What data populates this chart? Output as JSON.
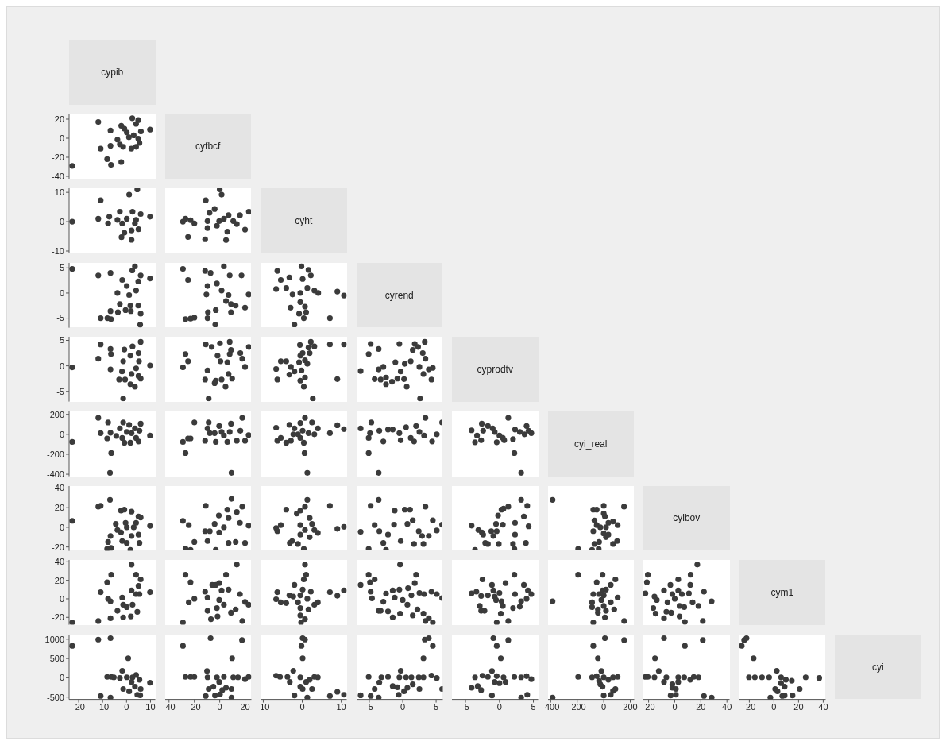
{
  "chart_data": [
    {
      "type": "other",
      "annotations": [
        "cypib",
        "cyfbcf",
        "cyht",
        "cyrend",
        "cyprodtv",
        "cyi_real",
        "cyibov",
        "cym1",
        "cyi"
      ]
    },
    {
      "type": "scatter",
      "color": "#3b3b3b",
      "marker": "circle",
      "tick_labels": "y",
      "xlim": [
        -24,
        12
      ],
      "xticks": [
        -20,
        -10,
        0,
        10
      ],
      "ylim": [
        -43,
        25
      ],
      "yticks": [
        -40,
        -20,
        0,
        20
      ],
      "x": [
        -22.7,
        -11.8,
        -10.8,
        -6.7,
        -6.7,
        -8.1,
        -6.5,
        -2.2,
        -2.2,
        0.1,
        2.4,
        4.9,
        9.8,
        -1.4,
        2,
        4,
        5.4,
        6,
        4,
        1,
        -3.8,
        -0.9,
        3,
        4.9,
        -2.8
      ],
      "values": [
        -29,
        17,
        -11,
        8,
        -8,
        -22,
        -28,
        -25,
        13,
        6,
        21,
        19,
        9,
        -9,
        -11,
        -9,
        -5,
        7,
        15,
        1,
        -1.5,
        10,
        3,
        -0.5,
        -6.5
      ]
    },
    {
      "type": "scatter",
      "color": "#3b3b3b",
      "marker": "circle",
      "tick_labels": "y",
      "xlim": [
        -24,
        12
      ],
      "xticks": [
        -20,
        -10,
        0,
        10
      ],
      "ylim": [
        -10.7,
        11.4
      ],
      "yticks": [
        -10,
        0,
        10
      ],
      "x": [
        -22.7,
        -10.8,
        -11.8,
        -7.2,
        -7.7,
        -2.8,
        -2.1,
        -0.9,
        1.1,
        4.5,
        2.1,
        2.1,
        5,
        9.8,
        0.1,
        -1.8,
        2.5,
        5.9,
        4,
        -3.8,
        3.5
      ],
      "values": [
        0,
        7.3,
        1,
        1.7,
        -0.6,
        3.4,
        -5.3,
        -3.8,
        9.2,
        11,
        -6.2,
        -3,
        -2.6,
        1.7,
        1,
        -0.6,
        3.4,
        2.6,
        0.6,
        0.6,
        -0.6
      ]
    },
    {
      "type": "scatter",
      "color": "#3b3b3b",
      "marker": "circle",
      "tick_labels": false,
      "xlim": [
        -43,
        25
      ],
      "xticks": [
        -40,
        -20,
        0,
        20
      ],
      "ylim": [
        -10.7,
        11.4
      ],
      "yticks": [
        -10,
        0,
        10
      ],
      "x": [
        -29,
        -27,
        -23,
        -20,
        -25,
        -11.5,
        -11,
        0,
        1.5,
        5,
        6,
        -8,
        -4,
        -9.6,
        -9.6,
        -0.4,
        3.3,
        10.7,
        16,
        23,
        20,
        13.5,
        -2.2,
        7
      ],
      "values": [
        0,
        1,
        0.5,
        -0.6,
        -5.2,
        -6,
        7.3,
        11,
        9.2,
        -6.3,
        -3.4,
        3,
        4.3,
        0.2,
        -2.2,
        0.2,
        1,
        0.2,
        2.2,
        3.4,
        -2.7,
        -0.8,
        -1.4,
        2.2
      ]
    },
    {
      "type": "scatter",
      "color": "#3b3b3b",
      "marker": "circle",
      "tick_labels": "y",
      "xlim": [
        -24,
        12
      ],
      "xticks": [
        -20,
        -10,
        0,
        10
      ],
      "ylim": [
        -6.9,
        6
      ],
      "yticks": [
        -5,
        0,
        5
      ],
      "x": [
        -22.7,
        -11.8,
        -10.8,
        -6.7,
        -8,
        -6.5,
        -6.7,
        -3.6,
        -1.8,
        3.5,
        2.4,
        -3.8,
        -2.8,
        -0.4,
        1.6,
        1.8,
        0.1,
        4,
        4.9,
        5.9,
        5.9,
        5.7,
        4.9,
        9.8,
        1.1
      ],
      "values": [
        4.8,
        3.5,
        -5,
        4,
        -5,
        -5.2,
        -3.6,
        -3.8,
        2.6,
        5.3,
        4.5,
        0,
        -2.2,
        -3.4,
        -2.5,
        -3.6,
        1.4,
        0.5,
        2.3,
        3.5,
        -4.1,
        -6.3,
        -2.5,
        2.9,
        -0.4
      ]
    },
    {
      "type": "scatter",
      "color": "#3b3b3b",
      "marker": "circle",
      "tick_labels": false,
      "xlim": [
        -43,
        25
      ],
      "xticks": [
        -40,
        -20,
        0,
        20
      ],
      "ylim": [
        -6.9,
        6
      ],
      "yticks": [
        -5,
        0,
        5
      ],
      "x": [
        -29,
        -25,
        -27,
        -23,
        -20,
        -11.5,
        -7.2,
        3.3,
        -3.5,
        -9.6,
        -9.3,
        -3.1,
        -9.6,
        -2.2,
        1.5,
        -10.5,
        5,
        7.9,
        8.9,
        8.9,
        12.6,
        17.2,
        20,
        22.8,
        7
      ],
      "values": [
        4.8,
        2.6,
        -5.2,
        -5.1,
        -4.9,
        4.4,
        4,
        5.3,
        -6.3,
        -5,
        -3.8,
        -3.4,
        1.4,
        1.9,
        0.5,
        -0.3,
        -1.6,
        3.5,
        -2.2,
        -3.8,
        -2.5,
        3.5,
        -2.9,
        -0.3,
        -0.4
      ]
    },
    {
      "type": "scatter",
      "color": "#3b3b3b",
      "marker": "circle",
      "tick_labels": false,
      "xlim": [
        -10.7,
        11.4
      ],
      "xticks": [
        -10,
        0,
        10
      ],
      "ylim": [
        -6.9,
        6
      ],
      "yticks": [
        -5,
        0,
        5
      ],
      "x": [
        -6.7,
        -6.4,
        -5.5,
        -4.1,
        -3.3,
        -2.5,
        -3,
        -2,
        -0.2,
        0.1,
        -0.5,
        -0.5,
        -0.8,
        0.4,
        0.7,
        1.3,
        2.2,
        1.6,
        3.1,
        4.1,
        1,
        9,
        10.7,
        7.1
      ],
      "values": [
        0.8,
        4.4,
        2.6,
        1,
        3.1,
        -0.3,
        -2.9,
        -6.3,
        5.3,
        2.8,
        0,
        -1.8,
        -4.1,
        -5,
        -2.7,
        1,
        3.5,
        4.6,
        0.5,
        0,
        -3.8,
        0.3,
        -0.5,
        -5
      ]
    },
    {
      "type": "scatter",
      "color": "#3b3b3b",
      "marker": "circle",
      "tick_labels": "y",
      "xlim": [
        -24,
        12
      ],
      "xticks": [
        -20,
        -10,
        0,
        10
      ],
      "ylim": [
        -7,
        5.7
      ],
      "yticks": [
        -5,
        0,
        5
      ],
      "x": [
        -22.7,
        -11.8,
        -10.8,
        -6.7,
        -6.5,
        -6.7,
        -3.1,
        -0.9,
        -1.4,
        -1.9,
        -0.6,
        1.6,
        3.5,
        2.5,
        1.6,
        2.1,
        5,
        5.9,
        5.9,
        5,
        5.2,
        4,
        9.8,
        -1.4
      ],
      "values": [
        -0.3,
        1.4,
        4.2,
        3.3,
        2.3,
        -0.7,
        -2.7,
        3.2,
        0.9,
        -1.1,
        -2.7,
        -3.6,
        -4.1,
        3.8,
        2,
        -1.6,
        -2,
        -2.5,
        4.7,
        2.5,
        0.9,
        -0.5,
        0.1,
        -6.4
      ]
    },
    {
      "type": "scatter",
      "color": "#3b3b3b",
      "marker": "circle",
      "tick_labels": false,
      "xlim": [
        -43,
        25
      ],
      "xticks": [
        -40,
        -20,
        0,
        20
      ],
      "ylim": [
        -7,
        5.7
      ],
      "yticks": [
        -5,
        0,
        5
      ],
      "x": [
        -29,
        -27,
        -25,
        -11,
        -6.3,
        0.2,
        7.9,
        23,
        -11.5,
        -9.6,
        -3.1,
        -4,
        1.5,
        4.6,
        -1.7,
        0.6,
        6,
        8.9,
        7.9,
        7,
        9.8,
        16.3,
        17.8,
        20,
        -8.7
      ],
      "values": [
        -0.3,
        2.3,
        0.9,
        4.2,
        3.7,
        4.4,
        4.7,
        3.7,
        -2.7,
        -0.9,
        -2.9,
        -3.4,
        -2.7,
        -4.1,
        2,
        0.9,
        0.7,
        3.1,
        2.3,
        -1.6,
        -2.5,
        2.5,
        1.4,
        -0.2,
        -6.4
      ]
    },
    {
      "type": "scatter",
      "color": "#3b3b3b",
      "marker": "circle",
      "tick_labels": false,
      "xlim": [
        -10.7,
        11.4
      ],
      "xticks": [
        -10,
        0,
        10
      ],
      "ylim": [
        -7,
        5.7
      ],
      "yticks": [
        -5,
        0,
        5
      ],
      "x": [
        -6.7,
        -6.4,
        -5.5,
        -4.1,
        -2.9,
        -3.3,
        -2,
        -0.8,
        -0.6,
        -0.5,
        0.1,
        0.7,
        1.6,
        2.2,
        3.1,
        1.9,
        1.3,
        0.7,
        -0.5,
        0.4,
        -0.2,
        7.1,
        9,
        10.7,
        2.7
      ],
      "values": [
        -0.6,
        -2.7,
        0.9,
        0.9,
        -0.2,
        -1.7,
        -1.1,
        0.7,
        4.1,
        2,
        2.5,
        1.1,
        3.6,
        4.7,
        3.8,
        2.5,
        0.4,
        -2.3,
        -2.9,
        -4.1,
        -0.9,
        4.2,
        -2.6,
        4.2,
        -6.4
      ]
    },
    {
      "type": "scatter",
      "color": "#3b3b3b",
      "marker": "circle",
      "tick_labels": false,
      "xlim": [
        -6.9,
        6
      ],
      "xticks": [
        -5,
        0,
        5
      ],
      "ylim": [
        -7,
        5.7
      ],
      "yticks": [
        -5,
        0,
        5
      ],
      "x": [
        -6.3,
        -5.1,
        -4.8,
        -3.6,
        -4.2,
        -3.3,
        -2.5,
        -2.5,
        -1.6,
        -3.6,
        -2.9,
        -1.1,
        -0.8,
        -0.3,
        0.2,
        0.6,
        -0.5,
        0.3,
        1.2,
        1.5,
        1.8,
        2.3,
        3,
        2.5,
        3.3,
        3.1,
        3.9,
        4.5,
        4.3,
        3.4,
        2.6
      ],
      "values": [
        -1,
        2.3,
        4.3,
        3.3,
        -2.6,
        -2.7,
        -2.3,
        -3.6,
        -3.1,
        -0.7,
        -0.2,
        0.7,
        -2.5,
        -1.1,
        -2.6,
        -4.1,
        4.3,
        0.4,
        0.9,
        3.1,
        4.3,
        3.7,
        2.5,
        -0.2,
        4.7,
        -1.6,
        -0.7,
        -0.4,
        -2.7,
        1.4,
        -6.4
      ]
    },
    {
      "type": "scatter",
      "color": "#3b3b3b",
      "marker": "circle",
      "tick_labels": "y",
      "xlim": [
        -24,
        12
      ],
      "xticks": [
        -20,
        -10,
        0,
        10
      ],
      "ylim": [
        -420,
        230
      ],
      "yticks": [
        -400,
        -200,
        0,
        200
      ],
      "x": [
        -22.7,
        -11.8,
        -10.8,
        -7.7,
        -8.1,
        -6.7,
        -6.4,
        -6.9,
        -1.4,
        -4.3,
        -2.8,
        -0.9,
        1.6,
        1.1,
        2.1,
        4,
        5,
        5.9,
        5.4,
        3.5,
        0.1,
        9.8,
        -1.8
      ],
      "values": [
        -76,
        166,
        12,
        119,
        -41,
        16,
        -188,
        -386,
        119,
        -16,
        59,
        -84,
        -84,
        95,
        12,
        -36,
        -71,
        107,
        36,
        59,
        24,
        -12,
        -36
      ]
    },
    {
      "type": "scatter",
      "color": "#3b3b3b",
      "marker": "circle",
      "tick_labels": false,
      "xlim": [
        -43,
        25
      ],
      "xticks": [
        -40,
        -20,
        0,
        20
      ],
      "ylim": [
        -420,
        230
      ],
      "yticks": [
        -400,
        -200,
        0,
        200
      ],
      "x": [
        -29,
        -27,
        -25,
        -23,
        -20,
        -11.5,
        -8.7,
        -9.6,
        -3.1,
        -4,
        -0.4,
        3.3,
        6,
        8.9,
        9.3,
        7.9,
        13.5,
        16.3,
        17.8,
        20,
        22.8,
        1.5,
        -7.8
      ],
      "values": [
        -76,
        -188,
        -41,
        -41,
        119,
        -64,
        119,
        59,
        -76,
        12,
        84,
        -12,
        -76,
        107,
        -386,
        24,
        -64,
        36,
        166,
        -64,
        -7,
        24,
        12
      ]
    },
    {
      "type": "scatter",
      "color": "#3b3b3b",
      "marker": "circle",
      "tick_labels": false,
      "xlim": [
        -10.7,
        11.4
      ],
      "xticks": [
        -10,
        0,
        10
      ],
      "ylim": [
        -420,
        230
      ],
      "yticks": [
        -400,
        -200,
        0,
        200
      ],
      "x": [
        -6.7,
        -6.4,
        -5.5,
        -4.1,
        -3.3,
        -2.9,
        -2,
        -2.3,
        -0.5,
        0.7,
        0.6,
        1.3,
        -0.5,
        0.4,
        0.1,
        1.6,
        2.5,
        3.1,
        4,
        7.1,
        9,
        10.7,
        -1.1
      ],
      "values": [
        66,
        -64,
        -36,
        -84,
        95,
        -64,
        59,
        0,
        114,
        166,
        -188,
        -386,
        -36,
        -84,
        36,
        12,
        119,
        0,
        59,
        12,
        91,
        52,
        0
      ]
    },
    {
      "type": "scatter",
      "color": "#3b3b3b",
      "marker": "circle",
      "tick_labels": false,
      "xlim": [
        -6.9,
        6
      ],
      "xticks": [
        -5,
        0,
        5
      ],
      "ylim": [
        -420,
        230
      ],
      "yticks": [
        -400,
        -200,
        0,
        200
      ],
      "x": [
        -6.3,
        -4.9,
        -5.1,
        -5.1,
        -3.6,
        -4.7,
        -3.5,
        -2.9,
        -2.2,
        -1.5,
        -0.5,
        -0.3,
        0.5,
        1.2,
        1.7,
        2,
        2.5,
        3.4,
        3.2,
        4.4,
        5.1,
        5.9
      ],
      "values": [
        59,
        12,
        -36,
        -188,
        -386,
        119,
        36,
        -71,
        48,
        48,
        12,
        -59,
        71,
        -36,
        -71,
        84,
        24,
        166,
        -12,
        -71,
        0,
        119
      ]
    },
    {
      "type": "scatter",
      "color": "#3b3b3b",
      "marker": "circle",
      "tick_labels": false,
      "xlim": [
        -7,
        5.7
      ],
      "xticks": [
        -5,
        0,
        5
      ],
      "ylim": [
        -420,
        230
      ],
      "yticks": [
        -400,
        -200,
        0,
        200
      ],
      "x": [
        -4.1,
        -3.6,
        -3.3,
        -2.7,
        -2.6,
        -2.4,
        -1.7,
        -1,
        -0.7,
        -0.4,
        0,
        0.5,
        0.7,
        1.3,
        2,
        2.2,
        3.2,
        2.3,
        3,
        3.7,
        4,
        4.3,
        4.7
      ],
      "values": [
        41,
        -79,
        -12,
        -59,
        107,
        36,
        84,
        59,
        24,
        -79,
        -12,
        -36,
        -59,
        166,
        -48,
        -188,
        -386,
        48,
        24,
        0,
        84,
        36,
        12
      ]
    },
    {
      "type": "scatter",
      "color": "#3b3b3b",
      "marker": "circle",
      "tick_labels": "y",
      "xlim": [
        -24,
        12
      ],
      "xticks": [
        -20,
        -10,
        0,
        10
      ],
      "ylim": [
        -24,
        42
      ],
      "yticks": [
        -20,
        0,
        20,
        40
      ],
      "x": [
        -22.7,
        -11.8,
        -10.8,
        -6.9,
        -6.7,
        -7.7,
        -8.1,
        -6.5,
        -4.5,
        -3.8,
        -2.3,
        -0.9,
        -1.8,
        1.6,
        2.1,
        -0.4,
        0.1,
        2.1,
        4,
        5,
        5.9,
        5,
        5.4,
        0.1,
        9.8,
        3,
        -2.3
      ],
      "values": [
        6.6,
        21,
        22,
        28,
        -8.8,
        -15,
        -22,
        -21,
        3.4,
        -2.7,
        17,
        18,
        -14,
        -23,
        16,
        4.6,
        0,
        -8.8,
        4.6,
        11,
        10,
        -7.5,
        -16,
        -16,
        1.5,
        0,
        -5.1
      ]
    },
    {
      "type": "scatter",
      "color": "#3b3b3b",
      "marker": "circle",
      "tick_labels": false,
      "xlim": [
        -43,
        25
      ],
      "xticks": [
        -40,
        -20,
        0,
        20
      ],
      "ylim": [
        -24,
        42
      ],
      "yticks": [
        -20,
        0,
        20,
        40
      ],
      "x": [
        -29,
        -24.4,
        -27,
        -23,
        -20,
        -11,
        -11.5,
        -9.6,
        -3.1,
        -0.7,
        -4,
        3.3,
        6,
        7,
        9.3,
        7,
        12.6,
        13.5,
        17.8,
        16,
        20,
        22.8,
        -0.4,
        -7.8
      ],
      "values": [
        6.6,
        2.2,
        -21.7,
        -23,
        -15,
        22,
        -3.9,
        -14,
        -23,
        12,
        3.4,
        0,
        18,
        9.5,
        29,
        -16,
        -15,
        15.6,
        21,
        4.6,
        -16,
        1.7,
        -5.1,
        -3.9
      ]
    },
    {
      "type": "scatter",
      "color": "#3b3b3b",
      "marker": "circle",
      "tick_labels": false,
      "xlim": [
        -10.7,
        11.4
      ],
      "xticks": [
        -10,
        0,
        10
      ],
      "ylim": [
        -24,
        42
      ],
      "yticks": [
        -20,
        0,
        20,
        40
      ],
      "x": [
        -6.7,
        -6.4,
        -5.5,
        -4.1,
        -3.2,
        -2.6,
        -1.4,
        -0.5,
        0.7,
        1.3,
        0.4,
        -1.1,
        -0.5,
        -0.5,
        0.7,
        1.9,
        2.5,
        3.1,
        4,
        1.9,
        7.1,
        9,
        10.7
      ],
      "values": [
        -0.7,
        -3.9,
        2.2,
        18,
        -16,
        -14,
        14,
        17,
        21,
        28,
        -22,
        -17,
        -7.5,
        2.2,
        -2.7,
        9.5,
        3.4,
        -2.7,
        -5.6,
        -10,
        22,
        -1.5,
        0.5
      ]
    },
    {
      "type": "scatter",
      "color": "#3b3b3b",
      "marker": "circle",
      "tick_labels": false,
      "xlim": [
        -6.9,
        6
      ],
      "xticks": [
        -5,
        0,
        5
      ],
      "ylim": [
        -24,
        42
      ],
      "yticks": [
        -20,
        0,
        20,
        40
      ],
      "x": [
        -6.3,
        -4.8,
        -3.6,
        -5.1,
        -2.5,
        -4.2,
        -3.5,
        -2.9,
        -2.2,
        -1.3,
        -1.2,
        -0.3,
        0.3,
        0.7,
        1.1,
        1.7,
        1.5,
        2.4,
        2.9,
        3.4,
        3.1,
        3.9,
        4.5,
        5.1,
        5.9
      ],
      "values": [
        -4.6,
        22,
        28,
        -22,
        -23,
        2.2,
        -3.9,
        -16,
        -7.5,
        2.7,
        17,
        -14,
        18,
        3.4,
        18,
        -17,
        7.1,
        -3.9,
        -8.8,
        21,
        -17,
        -8.8,
        7.1,
        -3.2,
        2.7
      ]
    },
    {
      "type": "scatter",
      "color": "#3b3b3b",
      "marker": "circle",
      "tick_labels": false,
      "xlim": [
        -7,
        5.7
      ],
      "xticks": [
        -5,
        0,
        5
      ],
      "ylim": [
        -24,
        42
      ],
      "yticks": [
        -20,
        0,
        20,
        40
      ],
      "x": [
        -4.1,
        -3.6,
        -3.1,
        -2.6,
        -2.4,
        -2.1,
        -1.7,
        -1.2,
        -0.9,
        -0.4,
        -0.5,
        -0.2,
        0.3,
        0.6,
        1.3,
        -0.1,
        0.5,
        2,
        2.2,
        2.3,
        2.3,
        3.2,
        3.6,
        4.1,
        3.9,
        4.3
      ],
      "values": [
        1.7,
        -23,
        -2.7,
        -5.1,
        -7.5,
        -16,
        -17,
        -3.9,
        -8.8,
        -3.9,
        3.4,
        12,
        18,
        19,
        21,
        -17,
        2.7,
        -17,
        -22,
        -7.5,
        4.6,
        28,
        11,
        22,
        -16,
        1
      ]
    },
    {
      "type": "scatter",
      "color": "#3b3b3b",
      "marker": "circle",
      "tick_labels": false,
      "xlim": [
        -420,
        230
      ],
      "xticks": [
        -400,
        -200,
        0,
        200
      ],
      "ylim": [
        -24,
        42
      ],
      "yticks": [
        -20,
        0,
        20,
        40
      ],
      "x": [
        -386,
        -193,
        -88,
        -38,
        -79,
        -53,
        0,
        0,
        9,
        -70,
        -53,
        -26,
        17,
        35,
        70,
        105,
        -79,
        0,
        17,
        -35,
        -70,
        70,
        101,
        153,
        35
      ],
      "values": [
        28,
        -22,
        -23,
        -22,
        18,
        18,
        22,
        14,
        11,
        7,
        2.2,
        0,
        0,
        4.6,
        5.9,
        2.2,
        -3.9,
        -6.3,
        -10,
        -15,
        -17,
        -17,
        -14,
        21,
        -7.5
      ]
    },
    {
      "type": "scatter",
      "color": "#3b3b3b",
      "marker": "circle",
      "tick_labels": "y",
      "xlim": [
        -24,
        12
      ],
      "xticks": [
        -20,
        -10,
        0,
        10
      ],
      "ylim": [
        -28,
        42
      ],
      "yticks": [
        -20,
        0,
        20,
        40
      ],
      "x": [
        -22.7,
        -11.8,
        -10.8,
        -8.1,
        -6.4,
        -6.7,
        -7.7,
        -6.7,
        -3.8,
        -1.4,
        1.8,
        -1.4,
        0.1,
        -1.8,
        2.1,
        4,
        5,
        5.9,
        2.1,
        4,
        5.4,
        4.5,
        2.5,
        9.8
      ],
      "values": [
        -25.6,
        -24,
        7.2,
        18,
        26,
        -21,
        0,
        -2.6,
        -13,
        -20,
        -19,
        -6.4,
        -9,
        1.3,
        37,
        26,
        14,
        21,
        9,
        5.1,
        5.1,
        -14,
        -6.4,
        7.2
      ]
    },
    {
      "type": "scatter",
      "color": "#3b3b3b",
      "marker": "circle",
      "tick_labels": false,
      "xlim": [
        -43,
        25
      ],
      "xticks": [
        -40,
        -20,
        0,
        20
      ],
      "ylim": [
        -28,
        42
      ],
      "yticks": [
        -20,
        0,
        20,
        40
      ],
      "x": [
        -29,
        -27,
        -23,
        -24.4,
        -20,
        -11.5,
        -9.6,
        -6.9,
        -1.7,
        -5.9,
        -3.1,
        -0.4,
        5,
        13.5,
        -0.4,
        1.5,
        7,
        3.3,
        -2.2,
        8.9,
        12.6,
        16,
        17.8,
        20,
        22.8,
        -9.6
      ],
      "values": [
        -25.6,
        26,
        18,
        -3.8,
        0,
        7.7,
        -13,
        -22,
        -19,
        15,
        15,
        17,
        26,
        37,
        -1.3,
        9,
        10,
        -6.4,
        -10,
        -15,
        -11.5,
        5.1,
        -24,
        -3.3,
        -6.4,
        1.3
      ]
    },
    {
      "type": "scatter",
      "color": "#3b3b3b",
      "marker": "circle",
      "tick_labels": false,
      "xlim": [
        -10.7,
        11.4
      ],
      "xticks": [
        -10,
        0,
        10
      ],
      "ylim": [
        -28,
        42
      ],
      "yticks": [
        -20,
        0,
        20,
        40
      ],
      "x": [
        -6.7,
        -6.4,
        -5.5,
        -4.1,
        -3.3,
        -2,
        -2.3,
        -1.1,
        -0.5,
        -0.5,
        -0.3,
        0.1,
        0.4,
        0.7,
        1,
        1.3,
        1.6,
        2.2,
        3.1,
        4,
        0.7,
        -0.5,
        7.1,
        9,
        10.7
      ],
      "values": [
        -0.5,
        7.2,
        -3.8,
        -4.6,
        3.8,
        15,
        2.5,
        -3.8,
        -10,
        -18,
        -25.6,
        10,
        21,
        37,
        26,
        0,
        -11.5,
        7.7,
        -6.4,
        -3.8,
        -22,
        3.8,
        7.2,
        3.3,
        9
      ]
    },
    {
      "type": "scatter",
      "color": "#3b3b3b",
      "marker": "circle",
      "tick_labels": false,
      "xlim": [
        -6.9,
        6
      ],
      "xticks": [
        -5,
        0,
        5
      ],
      "ylim": [
        -28,
        42
      ],
      "yticks": [
        -20,
        0,
        20,
        40
      ],
      "x": [
        -6.3,
        -5.1,
        -4.9,
        -4.2,
        -4.8,
        -4.6,
        -3.6,
        -3.3,
        -2.9,
        -2.5,
        -2.2,
        -1.5,
        -1.5,
        -1.2,
        -0.4,
        -0.5,
        -0.4,
        0,
        0.7,
        0.8,
        1.3,
        1.5,
        1.8,
        2,
        2.2,
        2.5,
        3.2,
        3.1,
        3.4,
        3.9,
        4.5,
        4.3,
        5.1,
        5.9
      ],
      "values": [
        15,
        26,
        18,
        21,
        7.7,
        0.5,
        -13,
        -13,
        -3.1,
        5.6,
        -13.6,
        -20,
        9,
        1.3,
        37,
        10,
        -16,
        -1.3,
        -6.4,
        11.5,
        3.8,
        -18,
        17,
        26,
        -11.5,
        6.4,
        5.1,
        -16,
        -24,
        -21,
        -25.6,
        7.7,
        5.1,
        0.8
      ]
    },
    {
      "type": "scatter",
      "color": "#3b3b3b",
      "marker": "circle",
      "tick_labels": false,
      "xlim": [
        -7,
        5.7
      ],
      "xticks": [
        -5,
        0,
        5
      ],
      "ylim": [
        -28,
        42
      ],
      "yticks": [
        -20,
        0,
        20,
        40
      ],
      "x": [
        -4.1,
        -3.4,
        -2.9,
        -2.7,
        -2.5,
        -2.7,
        -2.2,
        -1.7,
        -1.1,
        -0.9,
        -0.7,
        -0.4,
        -0.5,
        0,
        0.3,
        0.5,
        0.2,
        0.9,
        1.3,
        2,
        2.2,
        2.3,
        3,
        3.2,
        3.6,
        4,
        4.2,
        4.7
      ],
      "values": [
        5.9,
        7.7,
        -7.7,
        -13,
        21,
        3.1,
        -13,
        3.8,
        15,
        9,
        2.5,
        -25.6,
        -1.3,
        6.4,
        -2.6,
        -7.7,
        -16,
        17,
        -24,
        -10,
        26,
        5.1,
        -8.5,
        -2.6,
        15,
        0,
        9,
        5.1
      ]
    },
    {
      "type": "scatter",
      "color": "#3b3b3b",
      "marker": "circle",
      "tick_labels": false,
      "xlim": [
        -420,
        230
      ],
      "xticks": [
        -400,
        -200,
        0,
        200
      ],
      "ylim": [
        -28,
        42
      ],
      "yticks": [
        -20,
        0,
        20,
        40
      ],
      "x": [
        -386,
        -193,
        -79,
        -88,
        -79,
        -88,
        -53,
        -44,
        -9,
        -9,
        0,
        -18,
        0,
        9,
        17,
        53,
        88,
        53,
        79,
        105,
        17,
        154,
        -35,
        -44
      ],
      "values": [
        -2.6,
        26,
        -25.6,
        -9,
        5.1,
        -3.8,
        18,
        -11.5,
        26,
        9,
        3.8,
        -1.3,
        -7.7,
        -20,
        10,
        15,
        21,
        -3.8,
        -11.5,
        1.3,
        -13,
        -24,
        5.1,
        -15
      ]
    },
    {
      "type": "scatter",
      "color": "#3b3b3b",
      "marker": "circle",
      "tick_labels": false,
      "xlim": [
        -24,
        42
      ],
      "xticks": [
        -20,
        0,
        20,
        40
      ],
      "ylim": [
        -28,
        42
      ],
      "yticks": [
        -20,
        0,
        20,
        40
      ],
      "x": [
        -20.6,
        -21.3,
        -22.4,
        -15.5,
        -13.7,
        -16.4,
        -14.6,
        -8.2,
        -8.2,
        -3.3,
        -5.5,
        -6.4,
        -2.7,
        -1.8,
        0,
        2.7,
        2.7,
        3.7,
        3.7,
        5.5,
        7.8,
        7.3,
        10.9,
        12.2,
        11.9,
        13.7,
        17.3,
        18.2,
        21.5,
        22.4,
        28.3
      ],
      "values": [
        26,
        18,
        5.9,
        2.5,
        -1.3,
        -10,
        -16,
        9,
        -21,
        15,
        -3.8,
        -14,
        -15,
        5.1,
        0,
        21,
        9,
        -7.7,
        -19,
        5.1,
        -25,
        -9,
        5.9,
        26,
        15,
        -3.8,
        37,
        -7.7,
        -24,
        7.7,
        -2.6
      ]
    },
    {
      "type": "scatter",
      "color": "#3b3b3b",
      "marker": "circle",
      "xlim": [
        -24,
        12
      ],
      "xticks": [
        -20,
        -10,
        0,
        10
      ],
      "ylim": [
        -560,
        1120
      ],
      "yticks": [
        -500,
        0,
        500,
        1000
      ],
      "x": [
        -22.7,
        -11.8,
        -6.7,
        0.7,
        -10.8,
        -6.7,
        -8.1,
        -6.4,
        -1.8,
        -1.4,
        1.1,
        2.1,
        3.5,
        4.5,
        5.7,
        5.9,
        5.4,
        4,
        -5.3,
        -2.8,
        0.1,
        2.5,
        9.8
      ],
      "values": [
        828,
        991,
        1027,
        507,
        -471,
        -513,
        24,
        24,
        181,
        -290,
        -350,
        -109,
        -230,
        -440,
        -453,
        -290,
        -49,
        72,
        13,
        -5,
        13,
        13,
        -127
      ]
    },
    {
      "type": "scatter",
      "color": "#3b3b3b",
      "marker": "circle",
      "tick_labels": "x",
      "xlim": [
        -43,
        25
      ],
      "xticks": [
        -40,
        -20,
        0,
        20
      ],
      "ylim": [
        -560,
        1120
      ],
      "yticks": [
        -500,
        0,
        500,
        1000
      ],
      "x": [
        -29,
        -7.2,
        17.6,
        9.8,
        -27,
        -23,
        -20,
        -11,
        -3.7,
        0.2,
        9.3,
        -10,
        -8.7,
        -5,
        -0.4,
        2,
        5,
        9.3,
        -9.6,
        -2.2,
        3.3,
        10.7,
        20,
        22.8,
        14.4
      ],
      "values": [
        828,
        1027,
        978,
        507,
        24,
        24,
        24,
        -471,
        -458,
        -429,
        -513,
        176,
        -290,
        -230,
        -109,
        -320,
        -260,
        -290,
        13,
        13,
        24,
        13,
        -36,
        24,
        13
      ]
    },
    {
      "type": "scatter",
      "color": "#3b3b3b",
      "marker": "circle",
      "tick_labels": "x",
      "xlim": [
        -10.7,
        11.4
      ],
      "xticks": [
        -10,
        0,
        10
      ],
      "ylim": [
        -560,
        1120
      ],
      "yticks": [
        -500,
        0,
        500,
        1000
      ],
      "x": [
        -6.7,
        -5.7,
        -3.8,
        -2.3,
        -3.2,
        -2,
        -0.2,
        0.1,
        0.7,
        0.1,
        1.3,
        -0.5,
        0.1,
        1,
        2.5,
        1.9,
        -0.5,
        3.1,
        4,
        7.1,
        9,
        10.7
      ],
      "values": [
        54,
        24,
        24,
        181,
        -109,
        -458,
        828,
        1027,
        991,
        507,
        -513,
        -230,
        -290,
        -109,
        -290,
        -49,
        13,
        24,
        13,
        -471,
        -362,
        -440
      ]
    },
    {
      "type": "scatter",
      "color": "#3b3b3b",
      "marker": "circle",
      "tick_labels": "x",
      "xlim": [
        -6.9,
        6
      ],
      "xticks": [
        -5,
        0,
        5
      ],
      "ylim": [
        -560,
        1120
      ],
      "yticks": [
        -500,
        0,
        500,
        1000
      ],
      "x": [
        -6.3,
        -5.1,
        -4.8,
        -4.2,
        -3.6,
        -3.5,
        -3.2,
        -2.2,
        -1.5,
        -0.8,
        -0.6,
        -0.3,
        0.2,
        -0.5,
        0.7,
        0.5,
        1.5,
        1.3,
        2.5,
        2.4,
        3.1,
        3.3,
        3.9,
        4.5,
        3.1,
        4.3,
        5.1,
        5.9
      ],
      "values": [
        -453,
        24,
        -471,
        -290,
        -513,
        -121,
        13,
        24,
        -217,
        -248,
        -440,
        181,
        -350,
        13,
        -260,
        13,
        -169,
        13,
        -290,
        13,
        507,
        991,
        1027,
        828,
        13,
        60,
        -5,
        -290
      ]
    },
    {
      "type": "scatter",
      "color": "#3b3b3b",
      "marker": "circle",
      "tick_labels": "x",
      "xlim": [
        -7,
        5.7
      ],
      "xticks": [
        -5,
        0,
        5
      ],
      "ylim": [
        -560,
        1120
      ],
      "yticks": [
        -500,
        0,
        500,
        1000
      ],
      "x": [
        -4.1,
        -3.6,
        -3.2,
        -2.7,
        -2.5,
        -1.7,
        -1.1,
        -1.1,
        -0.9,
        -0.4,
        0.2,
        -0.4,
        -0.7,
        0,
        0.6,
        0.9,
        1.3,
        2.2,
        3.2,
        3.2,
        4,
        4.1,
        4.7
      ],
      "values": [
        -260,
        13,
        -217,
        -320,
        54,
        24,
        176,
        -458,
        1027,
        828,
        507,
        42,
        -109,
        -139,
        13,
        -109,
        978,
        24,
        13,
        -513,
        42,
        -440,
        -36
      ]
    },
    {
      "type": "scatter",
      "color": "#3b3b3b",
      "marker": "circle",
      "tick_labels": "x",
      "xlim": [
        -420,
        230
      ],
      "xticks": [
        -400,
        -200,
        0,
        200
      ],
      "ylim": [
        -560,
        1120
      ],
      "yticks": [
        -500,
        0,
        500,
        1000
      ],
      "x": [
        -386,
        -193,
        -79,
        -44,
        9,
        154,
        -88,
        -53,
        -18,
        -26,
        -9,
        0,
        0,
        35,
        53,
        70,
        88,
        105,
        70,
        -35
      ],
      "values": [
        -513,
        24,
        828,
        507,
        1027,
        978,
        13,
        42,
        176,
        -169,
        -230,
        -458,
        13,
        -49,
        -440,
        -339,
        -290,
        24,
        13,
        -78
      ]
    },
    {
      "type": "scatter",
      "color": "#3b3b3b",
      "marker": "circle",
      "tick_labels": "x",
      "xlim": [
        -24,
        42
      ],
      "xticks": [
        -20,
        0,
        20,
        40
      ],
      "ylim": [
        -560,
        1120
      ],
      "yticks": [
        -500,
        0,
        500,
        1000
      ],
      "x": [
        -22.4,
        -20.6,
        -15.1,
        -12.2,
        -15.5,
        -8.2,
        -8.2,
        7.8,
        21.5,
        -6.4,
        -1.8,
        -1.8,
        -3.1,
        0.9,
        0.9,
        2.7,
        2.7,
        7.3,
        11.9,
        14.6,
        18.2,
        22.4,
        28.3
      ],
      "values": [
        24,
        24,
        507,
        176,
        13,
        -109,
        1027,
        828,
        978,
        13,
        -169,
        -260,
        -458,
        -290,
        -440,
        -109,
        13,
        13,
        -49,
        24,
        13,
        -471,
        -513
      ]
    },
    {
      "type": "scatter",
      "color": "#3b3b3b",
      "marker": "circle",
      "tick_labels": "x",
      "xlim": [
        -28,
        42
      ],
      "xticks": [
        -20,
        0,
        20,
        40
      ],
      "ylim": [
        -560,
        1120
      ],
      "yticks": [
        -500,
        0,
        500,
        1000
      ],
      "x": [
        -26.2,
        -24.2,
        -22.3,
        -16.5,
        -20.3,
        -15.5,
        -9.7,
        -3.9,
        -2.9,
        1,
        2.3,
        2.9,
        5.8,
        6.8,
        8.7,
        8.7,
        9.7,
        5.8,
        14.5,
        15.1,
        20.9,
        25.8,
        36.8
      ],
      "values": [
        828,
        978,
        1027,
        507,
        13,
        13,
        13,
        13,
        -513,
        -290,
        181,
        -350,
        13,
        -471,
        -458,
        -230,
        -49,
        -139,
        -78,
        -458,
        -290,
        13,
        -5
      ]
    }
  ]
}
